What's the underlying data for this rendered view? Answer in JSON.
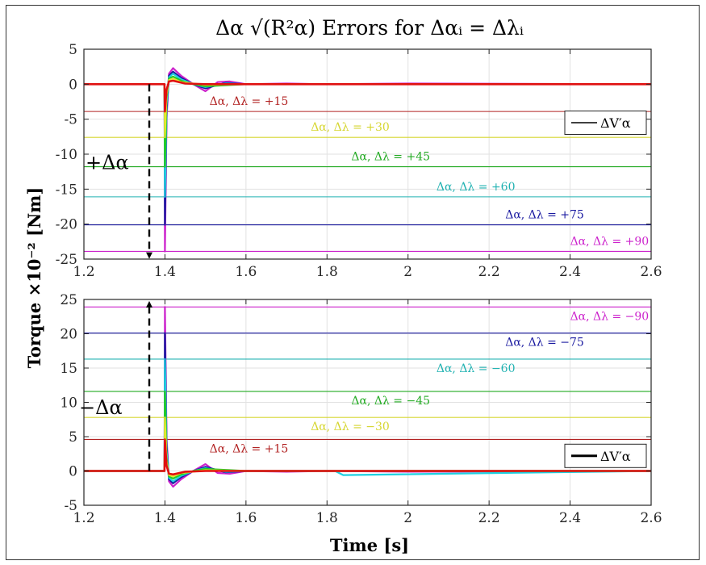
{
  "chart_data": [
    {
      "type": "line",
      "title": "Δα √(R²α) Errors for Δαᵢ = Δλᵢ",
      "xlabel": "",
      "ylabel": "Torque ×10⁻² [Nm]",
      "xlim": [
        1.2,
        2.6
      ],
      "ylim": [
        -25,
        5
      ],
      "xticks": [
        "1.2",
        "1.4",
        "1.6",
        "1.8",
        "2",
        "2.2",
        "2.4",
        "2.6"
      ],
      "yticks": [
        "5",
        "0",
        "-5",
        "-10",
        "-15",
        "-20",
        "-25"
      ],
      "grid": true,
      "legend": {
        "entries": [
          "ΔV′α"
        ],
        "placement": "top-right"
      },
      "step_annotation": "+Δα",
      "reference_lines": [
        {
          "label": "Δα, Δλ = +15",
          "y": -3.9,
          "color": "#b22222",
          "label_x": 1.51
        },
        {
          "label": "Δα, Δλ = +30",
          "y": -7.6,
          "color": "#d6d630",
          "label_x": 1.76
        },
        {
          "label": "Δα, Δλ = +45",
          "y": -11.8,
          "color": "#22aa22",
          "label_x": 1.86
        },
        {
          "label": "Δα, Δλ = +60",
          "y": -16.1,
          "color": "#20b2b2",
          "label_x": 2.07
        },
        {
          "label": "Δα, Δλ = +75",
          "y": -20.1,
          "color": "#1a1aa0",
          "label_x": 2.24
        },
        {
          "label": "Δα, Δλ = +90",
          "y": -23.9,
          "color": "#cc22cc",
          "label_x": 2.4
        }
      ],
      "series": [
        {
          "color": "#cc22cc",
          "x": [
            1.2,
            1.399,
            1.4,
            1.404,
            1.41,
            1.42,
            1.44,
            1.47,
            1.5,
            1.53,
            1.56,
            1.6,
            1.7,
            1.8,
            2.0,
            2.6
          ],
          "y": [
            0,
            0,
            -23.9,
            -5,
            1.5,
            2.3,
            1.2,
            0,
            -1,
            0.3,
            0.4,
            0,
            0.1,
            0,
            0.1,
            0
          ]
        },
        {
          "color": "#1a1aa0",
          "x": [
            1.2,
            1.399,
            1.4,
            1.404,
            1.41,
            1.42,
            1.44,
            1.47,
            1.5,
            1.55,
            1.6,
            2.6
          ],
          "y": [
            0,
            0,
            -20.1,
            -4,
            1.2,
            1.8,
            0.9,
            0,
            -0.6,
            0.2,
            0,
            0
          ]
        },
        {
          "color": "#20d0e0",
          "x": [
            1.2,
            1.399,
            1.4,
            1.404,
            1.41,
            1.42,
            1.44,
            1.47,
            1.5,
            1.55,
            1.6,
            2.6
          ],
          "y": [
            0,
            0,
            -16.1,
            -3,
            1,
            1.5,
            0.7,
            0,
            -0.4,
            0.1,
            0,
            0
          ]
        },
        {
          "color": "#22cc22",
          "x": [
            1.2,
            1.399,
            1.4,
            1.404,
            1.41,
            1.42,
            1.44,
            1.47,
            1.5,
            1.6,
            2.6
          ],
          "y": [
            0,
            0,
            -11.8,
            -2,
            0.8,
            1.1,
            0.5,
            0,
            -0.3,
            0,
            0
          ]
        },
        {
          "color": "#e6e630",
          "x": [
            1.2,
            1.399,
            1.4,
            1.404,
            1.41,
            1.42,
            1.44,
            1.5,
            1.6,
            2.6
          ],
          "y": [
            0,
            0,
            -7.6,
            -1.5,
            0.6,
            0.8,
            0.3,
            -0.1,
            0,
            0
          ]
        },
        {
          "color": "#e01010",
          "x": [
            1.2,
            1.399,
            1.4,
            1.404,
            1.41,
            1.42,
            1.45,
            1.5,
            1.6,
            2.6
          ],
          "y": [
            0,
            0,
            -3.9,
            -0.8,
            0.4,
            0.5,
            0.1,
            0,
            0,
            0
          ]
        }
      ]
    },
    {
      "type": "line",
      "title": "",
      "xlabel": "Time [s]",
      "ylabel": "Torque ×10⁻² [Nm]",
      "xlim": [
        1.2,
        2.6
      ],
      "ylim": [
        -5,
        25
      ],
      "xticks": [
        "1.2",
        "1.4",
        "1.6",
        "1.8",
        "2",
        "2.2",
        "2.4",
        "2.6"
      ],
      "yticks": [
        "25",
        "20",
        "15",
        "10",
        "5",
        "0",
        "-5"
      ],
      "grid": true,
      "legend": {
        "entries": [
          "ΔV′α"
        ],
        "placement": "bottom-right"
      },
      "step_annotation": "−Δα",
      "reference_lines": [
        {
          "label": "Δα, Δλ = −90",
          "y": 23.9,
          "color": "#cc22cc",
          "label_x": 2.4
        },
        {
          "label": "Δα, Δλ = −75",
          "y": 20.1,
          "color": "#1a1aa0",
          "label_x": 2.24
        },
        {
          "label": "Δα, Δλ = −60",
          "y": 16.3,
          "color": "#20b2b2",
          "label_x": 2.07
        },
        {
          "label": "Δα, Δλ = −45",
          "y": 11.6,
          "color": "#22aa22",
          "label_x": 1.86
        },
        {
          "label": "Δα, Δλ = −30",
          "y": 7.8,
          "color": "#d6d630",
          "label_x": 1.76
        },
        {
          "label": "Δα, Δλ = +15",
          "y": 4.6,
          "color": "#b22222",
          "label_x": 1.51
        }
      ],
      "series": [
        {
          "color": "#cc22cc",
          "x": [
            1.2,
            1.399,
            1.4,
            1.404,
            1.41,
            1.42,
            1.44,
            1.47,
            1.5,
            1.53,
            1.56,
            1.6,
            1.7,
            1.8,
            2.0,
            2.6
          ],
          "y": [
            0,
            0,
            23.9,
            5,
            -1.5,
            -2.3,
            -1.2,
            0,
            1,
            -0.3,
            -0.4,
            0,
            -0.1,
            0,
            -0.1,
            0
          ]
        },
        {
          "color": "#1a1aa0",
          "x": [
            1.2,
            1.399,
            1.4,
            1.404,
            1.41,
            1.42,
            1.44,
            1.47,
            1.5,
            1.55,
            1.6,
            2.6
          ],
          "y": [
            0,
            0,
            20.1,
            4,
            -1.2,
            -1.8,
            -0.9,
            0,
            0.6,
            -0.2,
            0,
            0
          ]
        },
        {
          "color": "#20d0e0",
          "x": [
            1.2,
            1.399,
            1.4,
            1.404,
            1.41,
            1.42,
            1.44,
            1.47,
            1.5,
            1.55,
            1.6,
            1.82,
            1.84,
            2.6
          ],
          "y": [
            0,
            0,
            16.3,
            3,
            -1,
            -1.5,
            -0.7,
            0,
            0.4,
            -0.1,
            0,
            0,
            -0.6,
            0
          ]
        },
        {
          "color": "#22cc22",
          "x": [
            1.2,
            1.399,
            1.4,
            1.404,
            1.41,
            1.42,
            1.44,
            1.47,
            1.5,
            1.6,
            2.6
          ],
          "y": [
            0,
            0,
            11.6,
            2,
            -0.8,
            -1.1,
            -0.5,
            0,
            0.3,
            0,
            0
          ]
        },
        {
          "color": "#e6e630",
          "x": [
            1.2,
            1.399,
            1.4,
            1.404,
            1.41,
            1.42,
            1.44,
            1.5,
            1.6,
            2.6
          ],
          "y": [
            0,
            0,
            7.8,
            1.5,
            -0.6,
            -0.8,
            -0.3,
            0.1,
            0,
            0
          ]
        },
        {
          "color": "#e01010",
          "x": [
            1.2,
            1.399,
            1.4,
            1.404,
            1.41,
            1.42,
            1.45,
            1.5,
            1.6,
            2.6
          ],
          "y": [
            0,
            0,
            4.6,
            0.8,
            -0.4,
            -0.5,
            -0.1,
            0,
            0,
            0
          ]
        }
      ]
    }
  ]
}
